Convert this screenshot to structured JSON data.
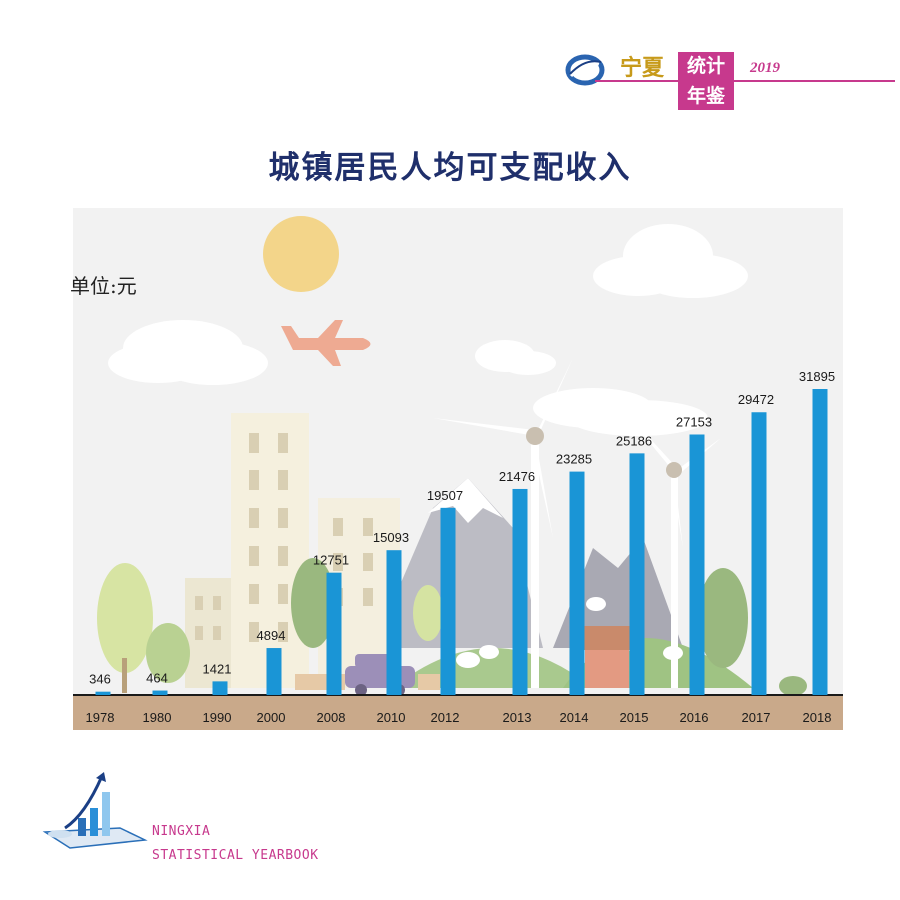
{
  "header": {
    "brand_top": "宁夏",
    "brand_box1": "统计",
    "brand_box2": "年鉴",
    "year": "2019"
  },
  "unit_label": "单位:元",
  "footer": {
    "line1": "NINGXIA",
    "line2": "STATISTICAL YEARBOOK"
  },
  "colors": {
    "bar": "#1a95d6",
    "title": "#1f2f6b",
    "accent": "#c7398d",
    "ground": "#c9a98a"
  },
  "chart_data": {
    "type": "bar",
    "title": "城镇居民人均可支配收入",
    "ylabel": "单位:元",
    "xlabel": "",
    "categories": [
      "1978",
      "1980",
      "1990",
      "2000",
      "2008",
      "2010",
      "2012",
      "2013",
      "2014",
      "2015",
      "2016",
      "2017",
      "2018"
    ],
    "values": [
      346,
      464,
      1421,
      4894,
      12751,
      15093,
      19507,
      21476,
      23285,
      25186,
      27153,
      29472,
      31895
    ],
    "ylim": [
      0,
      34000
    ],
    "grid": false,
    "legend": "none"
  }
}
